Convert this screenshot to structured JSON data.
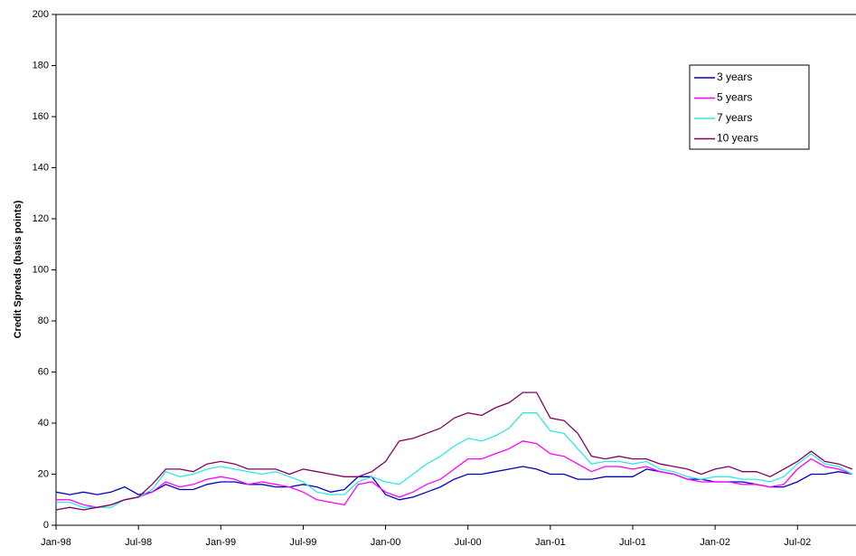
{
  "chart_data": {
    "type": "line",
    "y_label": "Credit Spreads (basis points)",
    "categories": [
      "Jan-98",
      null,
      null,
      null,
      null,
      null,
      "Jul-98",
      null,
      null,
      null,
      null,
      null,
      "Jan-99",
      null,
      null,
      null,
      null,
      null,
      "Jul-99",
      null,
      null,
      null,
      null,
      null,
      "Jan-00",
      null,
      null,
      null,
      null,
      null,
      "Jul-00",
      null,
      null,
      null,
      null,
      null,
      "Jan-01",
      null,
      null,
      null,
      null,
      null,
      "Jul-01",
      null,
      null,
      null,
      null,
      null,
      "Jan-02",
      null,
      null,
      null,
      null,
      null,
      "Jul-02",
      null,
      null,
      null,
      null
    ],
    "series": [
      {
        "name": "3 years",
        "color": "#0000c0",
        "values": [
          13,
          12,
          13,
          12,
          13,
          15,
          12,
          13,
          16,
          14,
          14,
          16,
          17,
          17,
          16,
          16,
          15,
          15,
          16,
          15,
          13,
          14,
          19,
          19,
          12,
          10,
          11,
          13,
          15,
          18,
          20,
          20,
          21,
          22,
          23,
          22,
          20,
          20,
          18,
          18,
          19,
          19,
          19,
          22,
          21,
          20,
          18,
          18,
          17,
          17,
          17,
          16,
          15,
          15,
          17,
          20,
          20,
          21,
          20
        ]
      },
      {
        "name": "5 years",
        "color": "#ff00ff",
        "values": [
          10,
          10,
          8,
          7,
          8,
          10,
          11,
          13,
          17,
          15,
          16,
          18,
          19,
          18,
          16,
          17,
          16,
          15,
          13,
          10,
          9,
          8,
          16,
          17,
          13,
          11,
          13,
          16,
          18,
          22,
          26,
          26,
          28,
          30,
          33,
          32,
          28,
          27,
          24,
          21,
          23,
          23,
          22,
          23,
          21,
          20,
          18,
          17,
          17,
          17,
          16,
          16,
          15,
          16,
          22,
          26,
          23,
          22,
          20
        ]
      },
      {
        "name": "7 years",
        "color": "#33e6e6",
        "values": [
          9,
          9,
          7,
          7,
          7,
          10,
          11,
          14,
          21,
          19,
          20,
          22,
          23,
          22,
          21,
          20,
          21,
          19,
          17,
          13,
          12,
          12,
          17,
          19,
          17,
          16,
          20,
          24,
          27,
          31,
          34,
          33,
          35,
          38,
          44,
          44,
          37,
          36,
          30,
          24,
          25,
          25,
          24,
          25,
          22,
          21,
          19,
          18,
          19,
          19,
          18,
          18,
          17,
          19,
          24,
          28,
          24,
          23,
          20
        ]
      },
      {
        "name": "10 years",
        "color": "#800060",
        "values": [
          6,
          7,
          6,
          7,
          8,
          10,
          11,
          16,
          22,
          22,
          21,
          24,
          25,
          24,
          22,
          22,
          22,
          20,
          22,
          21,
          20,
          19,
          19,
          21,
          25,
          33,
          34,
          36,
          38,
          42,
          44,
          43,
          46,
          48,
          52,
          52,
          42,
          41,
          36,
          27,
          26,
          27,
          26,
          26,
          24,
          23,
          22,
          20,
          22,
          23,
          21,
          21,
          19,
          22,
          25,
          29,
          25,
          24,
          22
        ]
      }
    ],
    "ylim": [
      0,
      200
    ],
    "yticks": [
      0,
      20,
      40,
      60,
      80,
      100,
      120,
      140,
      160,
      180,
      200
    ],
    "legend": "upper right"
  }
}
